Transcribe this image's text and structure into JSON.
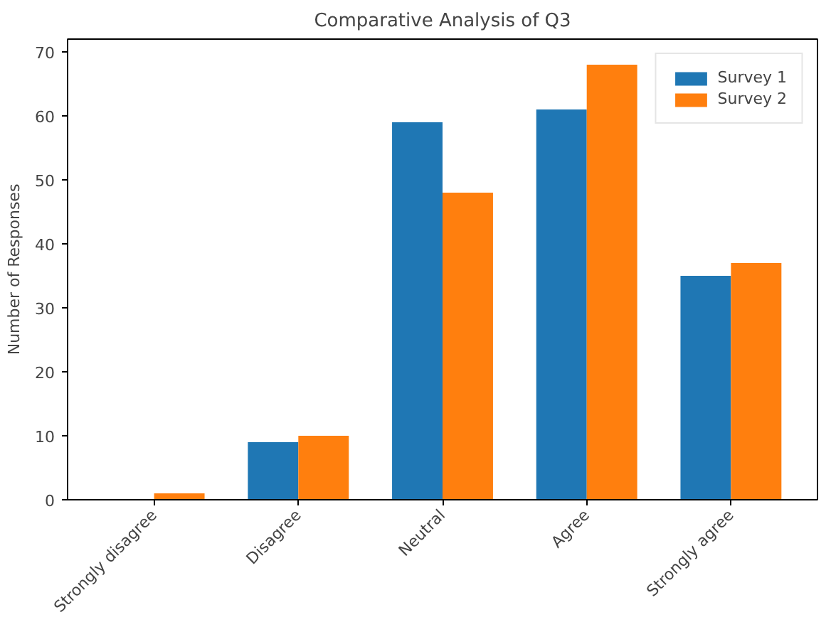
{
  "chart_data": {
    "type": "bar",
    "title": "Comparative Analysis of Q3",
    "ylabel": "Number of Responses",
    "categories": [
      "Strongly disagree",
      "Disagree",
      "Neutral",
      "Agree",
      "Strongly agree"
    ],
    "series": [
      {
        "name": "Survey 1",
        "color": "#1f77b4",
        "values": [
          0,
          9,
          59,
          61,
          35
        ]
      },
      {
        "name": "Survey 2",
        "color": "#ff7f0e",
        "values": [
          1,
          10,
          48,
          68,
          37
        ]
      }
    ],
    "ylim": [
      0,
      72
    ],
    "yticks": [
      0,
      10,
      20,
      30,
      40,
      50,
      60,
      70
    ],
    "grid": false,
    "legend": "top right"
  }
}
